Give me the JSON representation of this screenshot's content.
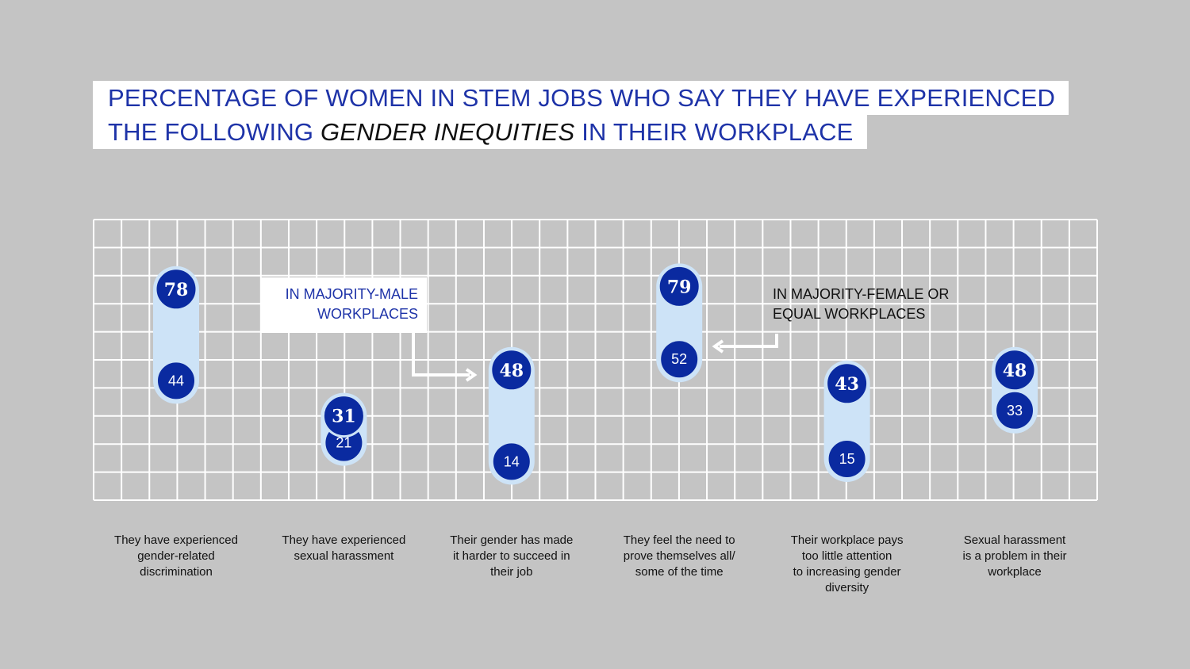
{
  "title": {
    "line1": "PERCENTAGE OF WOMEN IN STEM JOBS WHO SAY THEY HAVE EXPERIENCED",
    "line2_prefix": "THE FOLLOWING ",
    "line2_emphasis": "GENDER INEQUITIES",
    "line2_suffix": " IN THEIR WORKPLACE"
  },
  "annotations": {
    "majority_male": "IN MAJORITY-MALE\nWORKPLACES",
    "majority_female": "IN MAJORITY-FEMALE OR\nEQUAL WORKPLACES"
  },
  "colors": {
    "background": "#c4c4c4",
    "grid": "#ffffff",
    "capsule": "#cde3f7",
    "dot": "#0a2aa0",
    "title_text": "#1e33a8"
  },
  "chart_data": {
    "type": "dumbbell",
    "title": "PERCENTAGE OF WOMEN IN STEM JOBS WHO SAY THEY HAVE EXPERIENCED THE FOLLOWING GENDER INEQUITIES IN THEIR WORKPLACE",
    "categories": [
      "They have experienced\ngender-related\ndiscrimination",
      "They have experienced\nsexual harassment",
      "Their gender has made\nit harder to succeed in\ntheir job",
      "They feel the need to\nprove themselves all/\nsome of the time",
      "Their workplace pays\ntoo little attention\nto increasing gender\ndiversity",
      "Sexual harassment\nis a problem in their\nworkplace"
    ],
    "series": [
      {
        "name": "IN MAJORITY-MALE WORKPLACES",
        "values": [
          78,
          31,
          48,
          79,
          43,
          48
        ]
      },
      {
        "name": "IN MAJORITY-FEMALE OR EQUAL WORKPLACES",
        "values": [
          44,
          21,
          14,
          52,
          15,
          33
        ]
      }
    ],
    "grid": true,
    "legend": "inline annotations"
  }
}
